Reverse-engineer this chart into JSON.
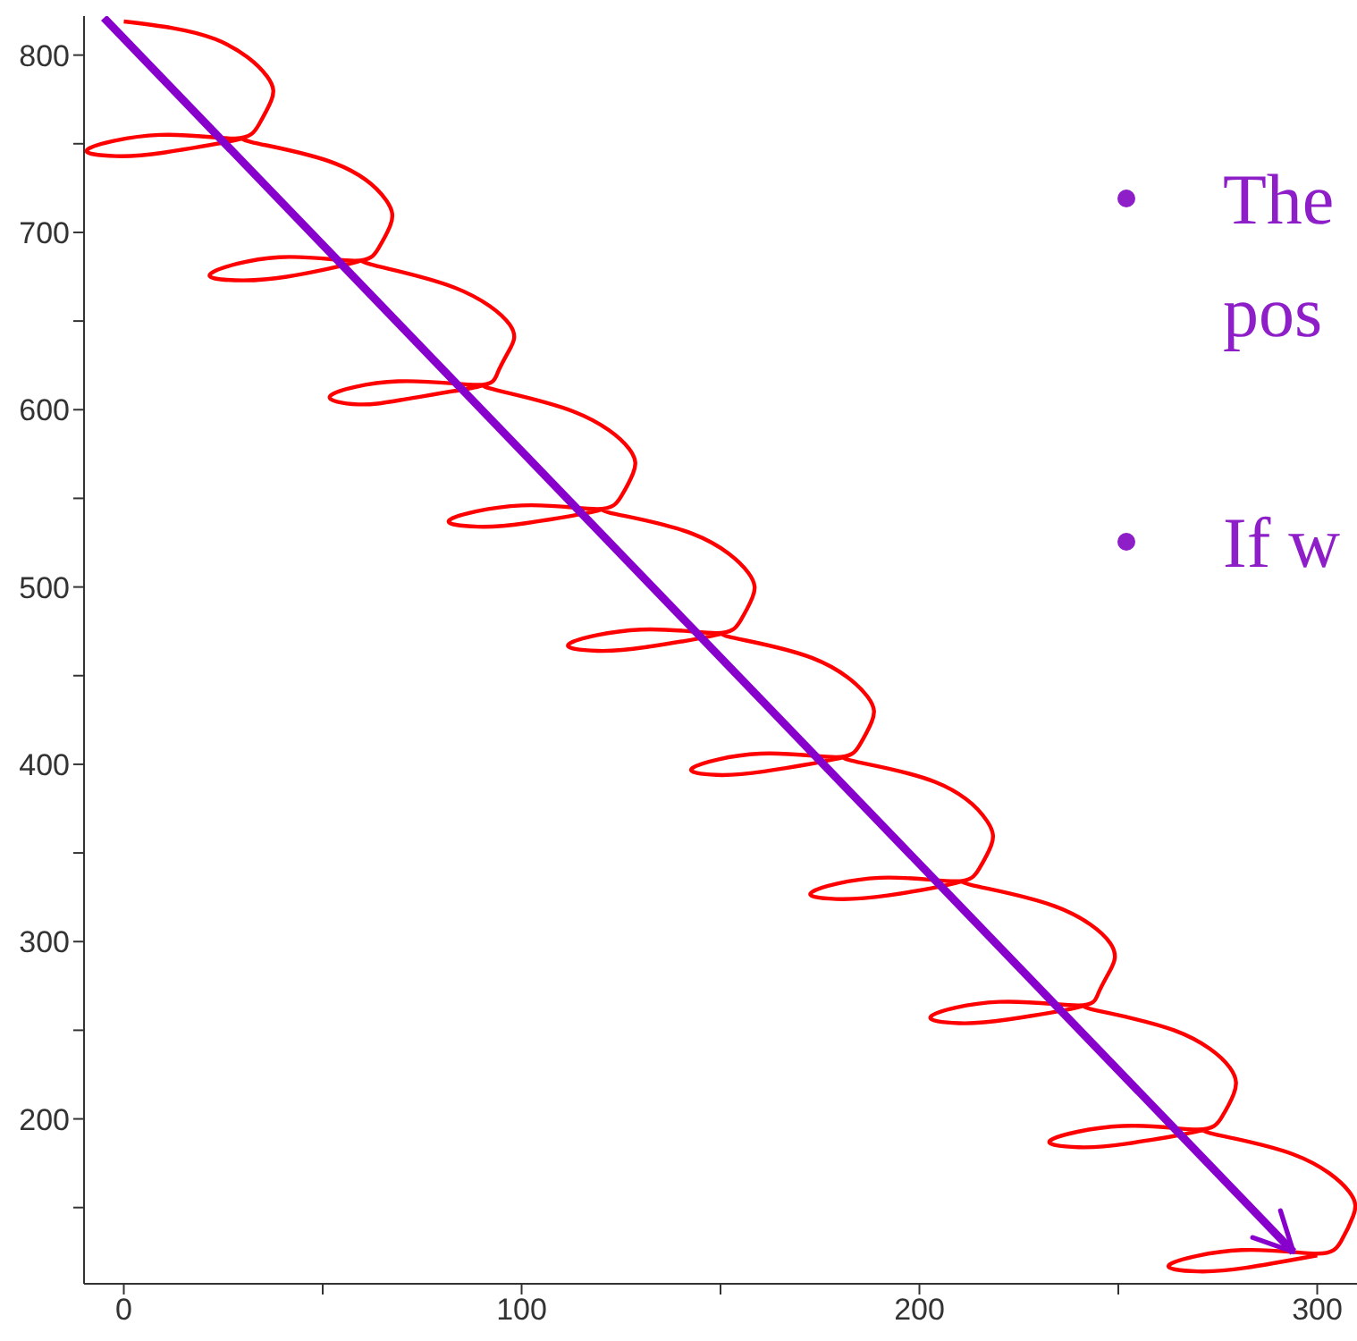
{
  "chart_data": {
    "type": "line",
    "xlim": [
      -10,
      310
    ],
    "ylim": [
      107,
      822
    ],
    "xticks": [
      0,
      {
        "value": 50,
        "label": null
      },
      100,
      {
        "value": 150,
        "label": null
      },
      200,
      {
        "value": 250,
        "label": null
      },
      300
    ],
    "yticks": [
      {
        "value": 150,
        "label": null
      },
      200,
      {
        "value": 250,
        "label": null
      },
      300,
      {
        "value": 350,
        "label": null
      },
      400,
      {
        "value": 450,
        "label": null
      },
      500,
      {
        "value": 550,
        "label": null
      },
      600,
      {
        "value": 650,
        "label": null
      },
      700,
      {
        "value": 750,
        "label": null
      },
      800
    ],
    "grid": false,
    "annotations": [
      "The",
      "pos",
      "If w"
    ],
    "series": [
      {
        "color": "#ff0000",
        "x": [
          0,
          23,
          36,
          37,
          34,
          28,
          9,
          -9,
          -2,
          10,
          28,
          32,
          53,
          66,
          67,
          64,
          58,
          39,
          22,
          28,
          41,
          58,
          62,
          83,
          97,
          97,
          94,
          89,
          69,
          52,
          59,
          71,
          89,
          92,
          113,
          127,
          128,
          125,
          119,
          100,
          82,
          89,
          101,
          119,
          122,
          143,
          157,
          158,
          155,
          149,
          130,
          112,
          119,
          131,
          149,
          152,
          173,
          187,
          188,
          185,
          179,
          160,
          143,
          149,
          161,
          179,
          183,
          204,
          217,
          218,
          215,
          209,
          190,
          173,
          179,
          192,
          209,
          213,
          234,
          248,
          248,
          245,
          240,
          220,
          203,
          210,
          222,
          240,
          243,
          264,
          278,
          279,
          276,
          270,
          251,
          233,
          240,
          252,
          270,
          273,
          294,
          308,
          309,
          306,
          300,
          281,
          263,
          270,
          282,
          300
        ],
        "values": [
          819,
          809,
          788,
          774,
          761,
          753,
          755,
          747,
          743,
          745,
          752,
          751,
          739,
          718,
          704,
          691,
          684,
          686,
          677,
          673,
          675,
          683,
          682,
          669,
          648,
          634,
          621,
          614,
          616,
          608,
          603,
          606,
          613,
          612,
          599,
          578,
          564,
          551,
          544,
          546,
          538,
          534,
          536,
          543,
          542,
          530,
          508,
          494,
          481,
          474,
          476,
          468,
          464,
          466,
          473,
          472,
          460,
          438,
          424,
          411,
          404,
          406,
          398,
          394,
          396,
          403,
          402,
          390,
          368,
          354,
          341,
          334,
          336,
          328,
          324,
          326,
          333,
          332,
          320,
          299,
          284,
          271,
          264,
          266,
          258,
          254,
          256,
          263,
          262,
          250,
          229,
          214,
          201,
          194,
          196,
          188,
          184,
          186,
          193,
          192,
          180,
          159,
          145,
          131,
          124,
          126,
          118,
          114,
          116,
          123
        ]
      },
      {
        "color": "#8800cc",
        "x": [
          -5,
          294
        ],
        "values": [
          821,
          125
        ]
      }
    ]
  }
}
